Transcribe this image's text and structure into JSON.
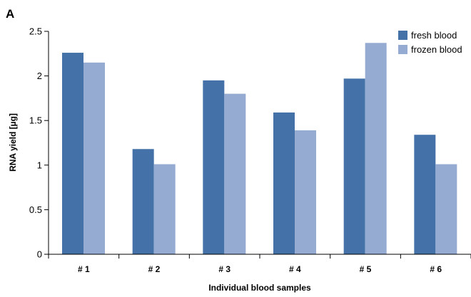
{
  "panel_label": "A",
  "chart_data": {
    "type": "bar",
    "title": "",
    "xlabel": "Individual blood samples",
    "ylabel": "RNA yield [µg]",
    "categories": [
      "# 1",
      "# 2",
      "# 3",
      "# 4",
      "# 5",
      "# 6"
    ],
    "series": [
      {
        "name": "fresh blood",
        "color": "#4472a8",
        "values": [
          2.26,
          1.18,
          1.95,
          1.59,
          1.97,
          1.34
        ]
      },
      {
        "name": "frozen blood",
        "color": "#95abd2",
        "values": [
          2.15,
          1.01,
          1.8,
          1.39,
          2.37,
          1.01
        ]
      }
    ],
    "ylim": [
      0,
      2.5
    ],
    "yticks": [
      0,
      0.5,
      1,
      1.5,
      2,
      2.5
    ],
    "ytick_labels": [
      "0",
      "0.5",
      "1",
      "1.5",
      "2",
      "2.5"
    ],
    "grid": false,
    "legend_position": "top-right"
  }
}
